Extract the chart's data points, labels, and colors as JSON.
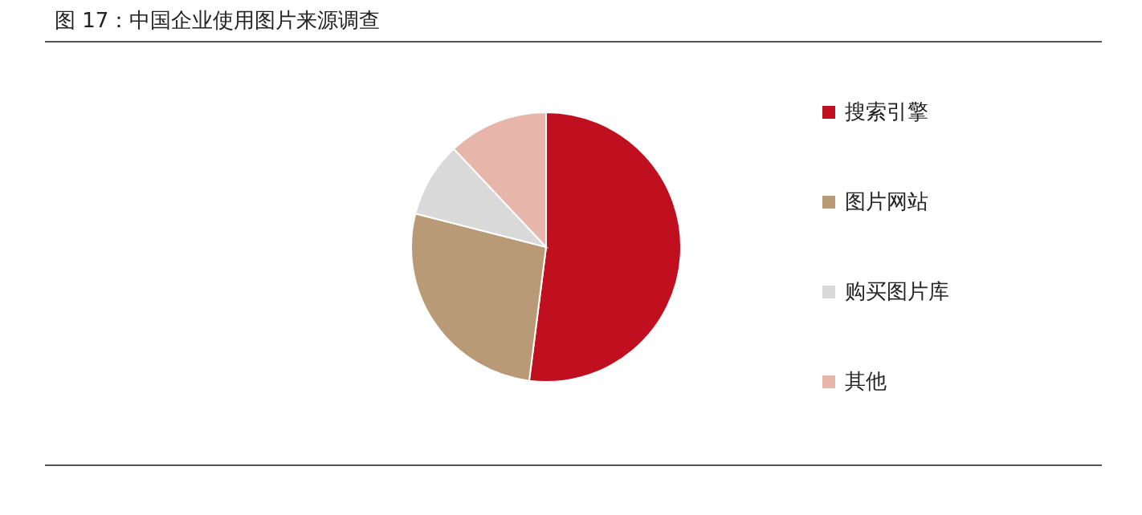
{
  "chart_data": {
    "type": "pie",
    "title": "图 17：中国企业使用图片来源调查",
    "categories": [
      "搜索引擎",
      "图片网站",
      "购买图片库",
      "其他"
    ],
    "values": [
      52,
      27,
      9,
      12
    ],
    "colors": [
      "#c00f1e",
      "#b99a76",
      "#d9d9d9",
      "#e8b5ab"
    ],
    "legend": "right"
  }
}
